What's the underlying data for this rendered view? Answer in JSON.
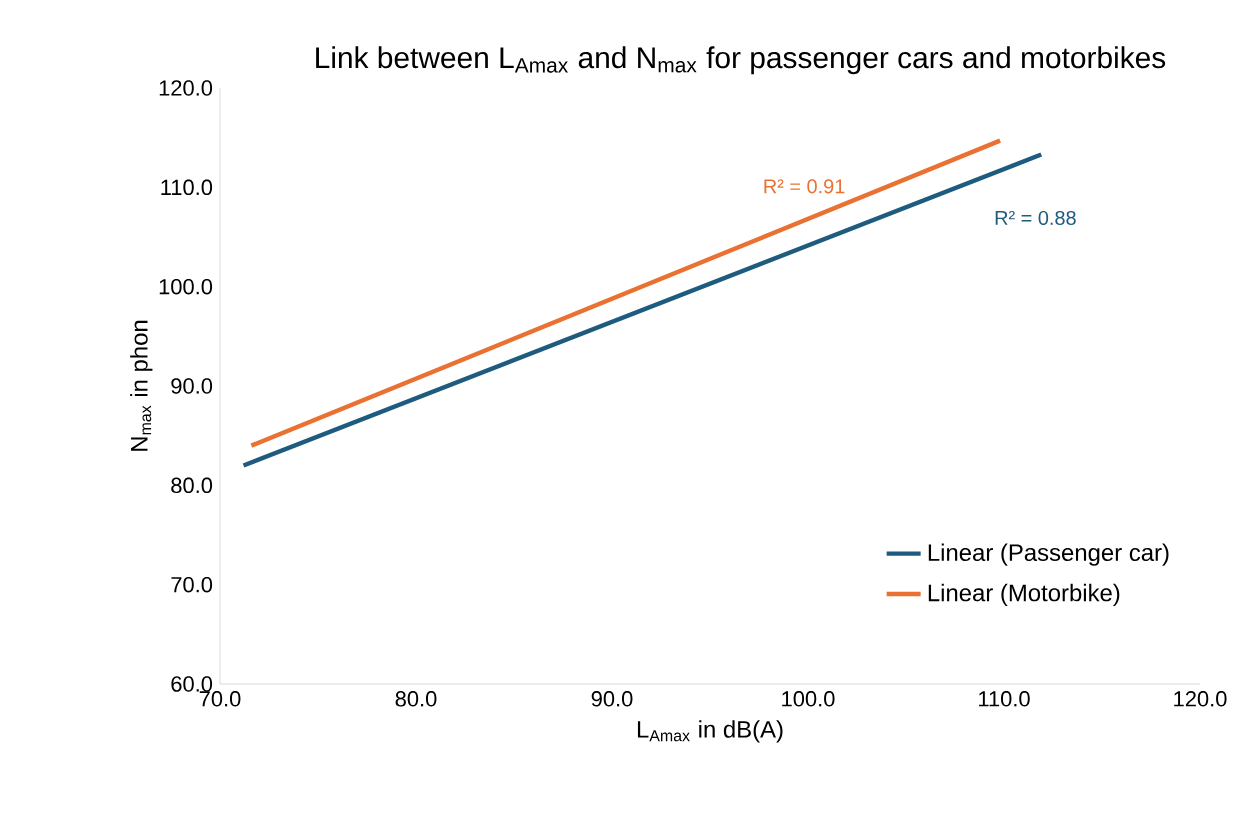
{
  "chart_data": {
    "type": "line",
    "title": "Link between L$_{Amax}$ and N$_{max}$ for passenger cars and motorbikes",
    "xlabel": "L$_{Amax}$ in dB(A)",
    "ylabel": "N$_{max}$ in phon",
    "series": [
      {
        "name": "Linear (Passenger car)",
        "color": "#1f5b7e",
        "x": [
          71.2,
          111.9
        ],
        "values": [
          82.0,
          113.3
        ]
      },
      {
        "name": "Linear (Motorbike)",
        "color": "#e97132",
        "x": [
          71.6,
          109.8
        ],
        "values": [
          84.0,
          114.7
        ]
      }
    ],
    "annotations": [
      "R² = 0.91",
      "R² = 0.88"
    ],
    "xlim": [
      70,
      120
    ],
    "ylim": [
      60,
      120
    ],
    "xticks": [
      {
        "value": 70,
        "label": "70.0"
      },
      {
        "value": 80,
        "label": "80.0"
      },
      {
        "value": 90,
        "label": "90.0"
      },
      {
        "value": 100,
        "label": "100.0"
      },
      {
        "value": 110,
        "label": "110.0"
      },
      {
        "value": 120,
        "label": "120.0"
      }
    ],
    "yticks": [
      {
        "value": 60,
        "label": "60.0"
      },
      {
        "value": 70,
        "label": "70.0"
      },
      {
        "value": 80,
        "label": "80.0"
      },
      {
        "value": 90,
        "label": "90.0"
      },
      {
        "value": 100,
        "label": "100.0"
      },
      {
        "value": 110,
        "label": "110.0"
      },
      {
        "value": 120,
        "label": "120.0"
      }
    ],
    "grid": false,
    "legend": "right",
    "marker": "none",
    "line_style": "solid"
  }
}
